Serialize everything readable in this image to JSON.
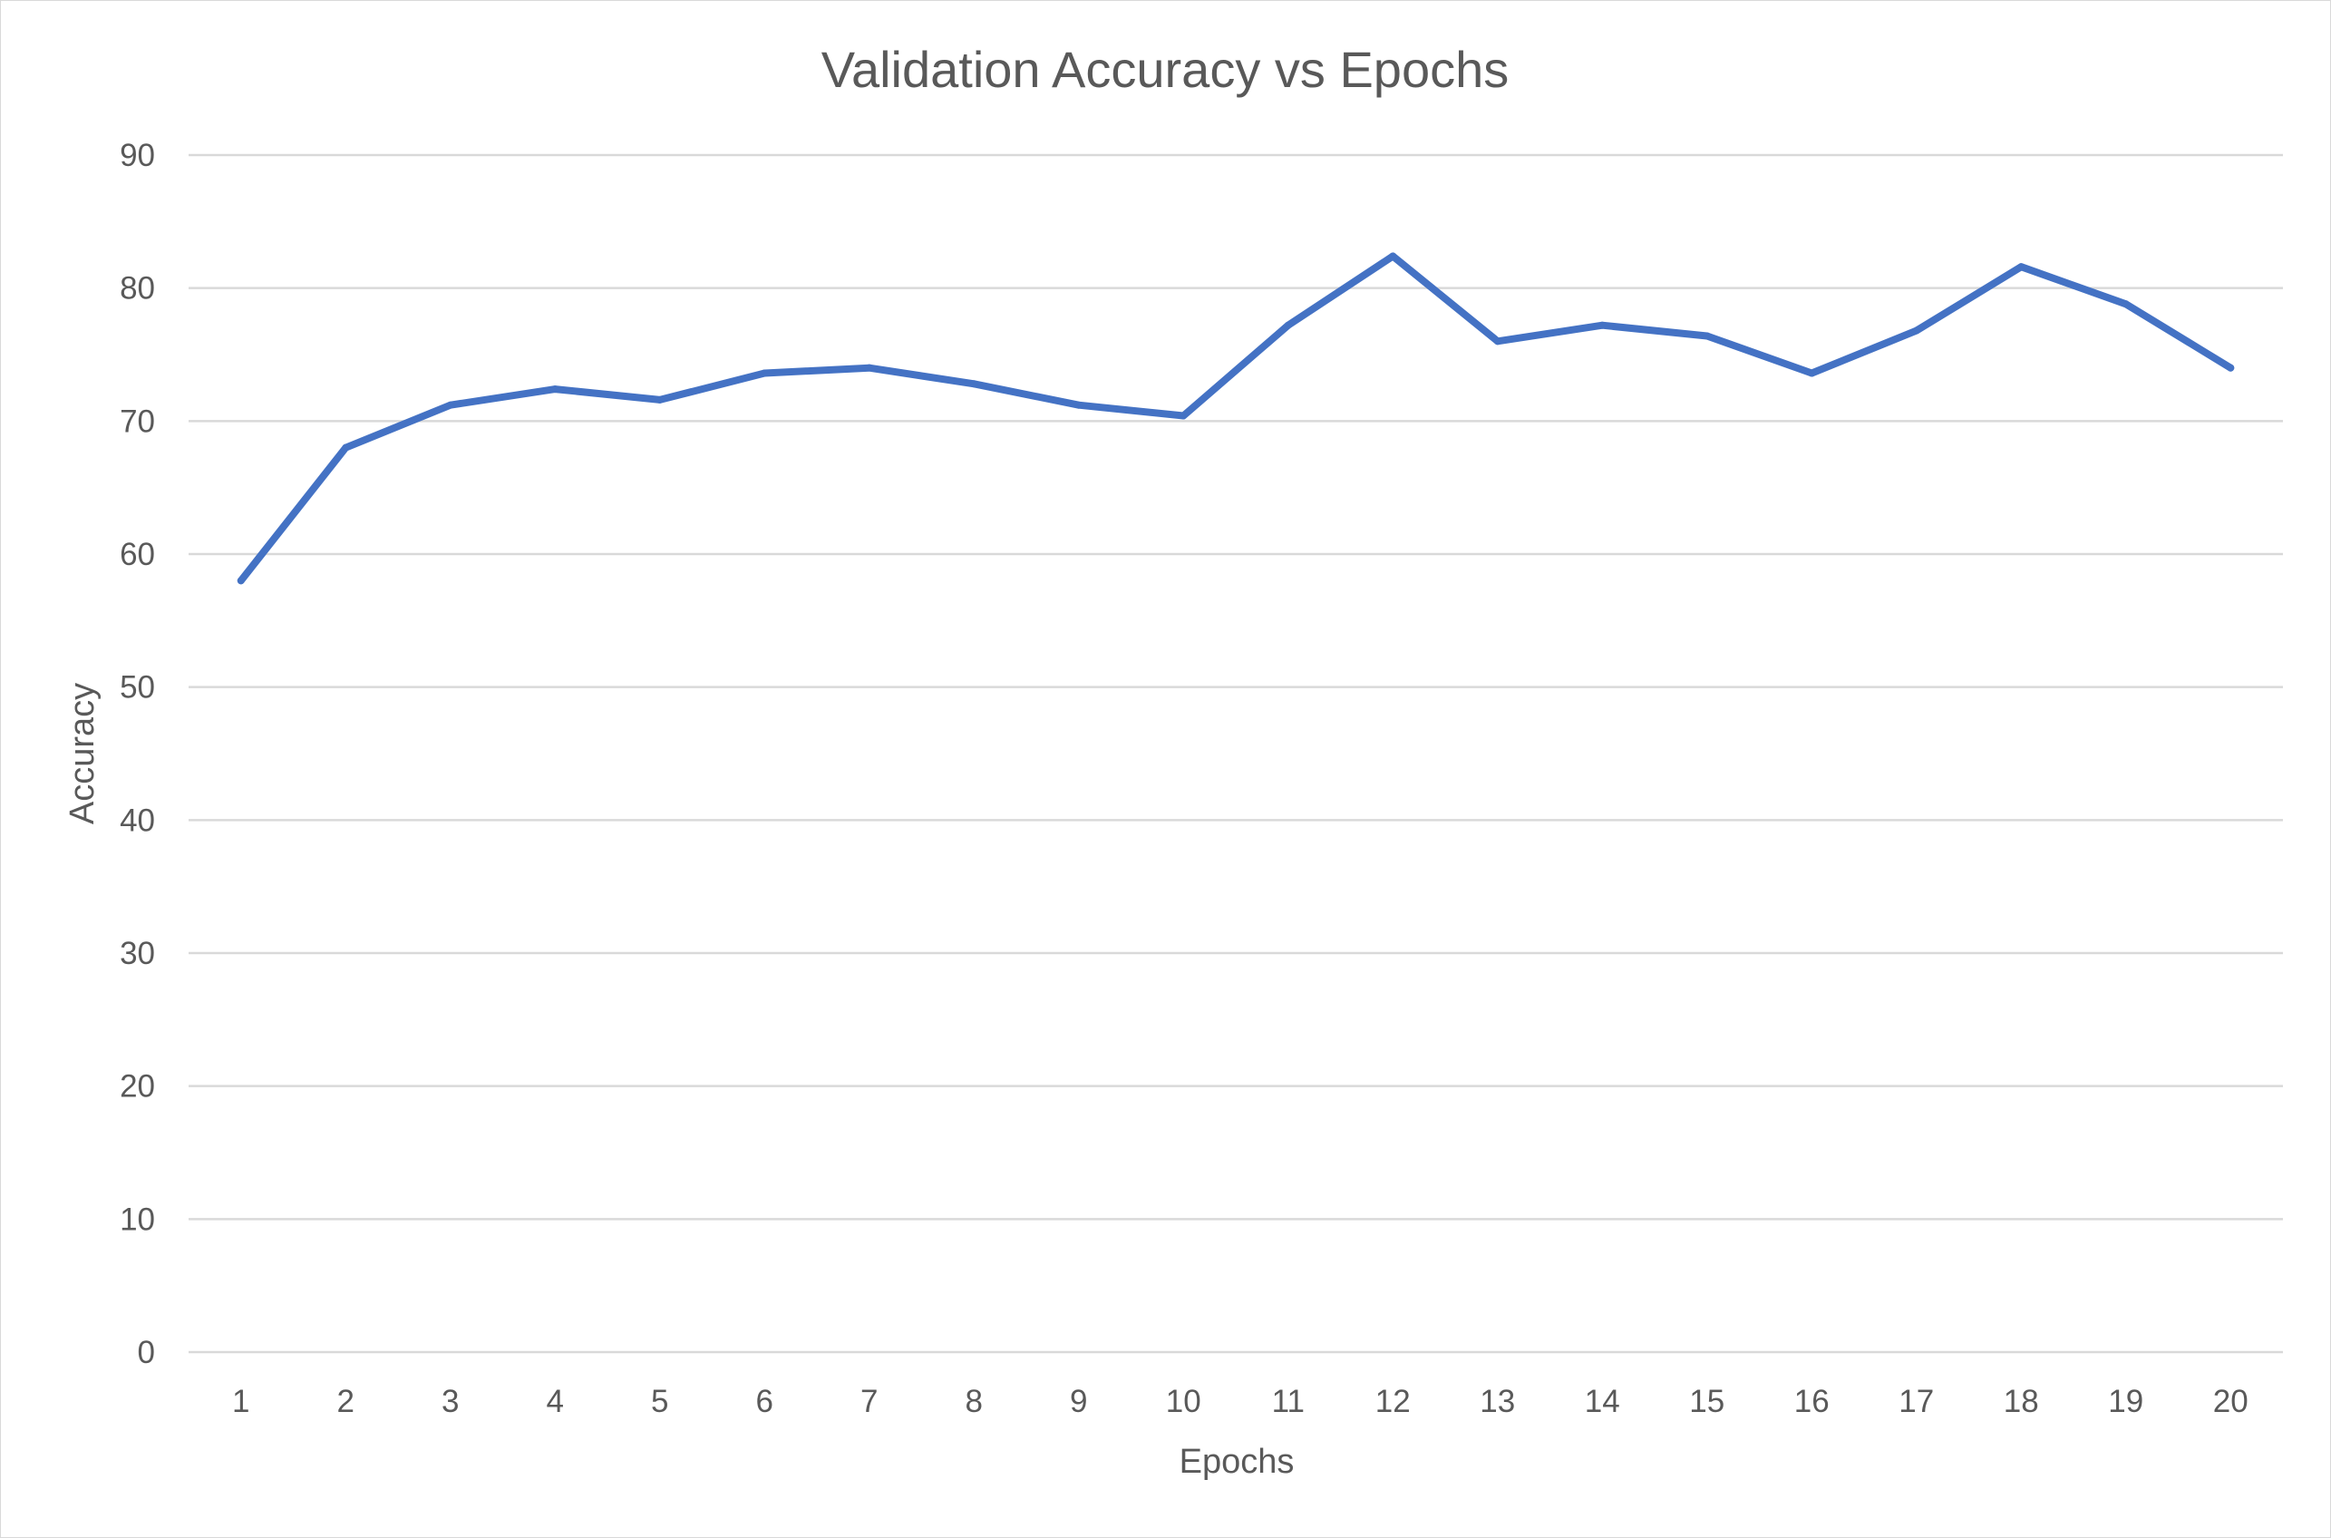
{
  "chart_data": {
    "type": "line",
    "title": "Validation Accuracy vs Epochs",
    "xlabel": "Epochs",
    "ylabel": "Accuracy",
    "categories": [
      "1",
      "2",
      "3",
      "4",
      "5",
      "6",
      "7",
      "8",
      "9",
      "10",
      "11",
      "12",
      "13",
      "14",
      "15",
      "16",
      "17",
      "18",
      "19",
      "20"
    ],
    "series": [
      {
        "values": [
          58.0,
          68.0,
          71.2,
          72.4,
          71.6,
          73.6,
          74.0,
          72.8,
          71.2,
          70.4,
          77.2,
          82.4,
          76.0,
          77.2,
          76.4,
          73.6,
          76.8,
          81.6,
          78.8,
          74.0
        ],
        "color": "#4472c4"
      }
    ],
    "ylim": [
      0,
      90
    ],
    "yticks": [
      0,
      10,
      20,
      30,
      40,
      50,
      60,
      70,
      80,
      90
    ],
    "grid": true,
    "legend": "none"
  }
}
